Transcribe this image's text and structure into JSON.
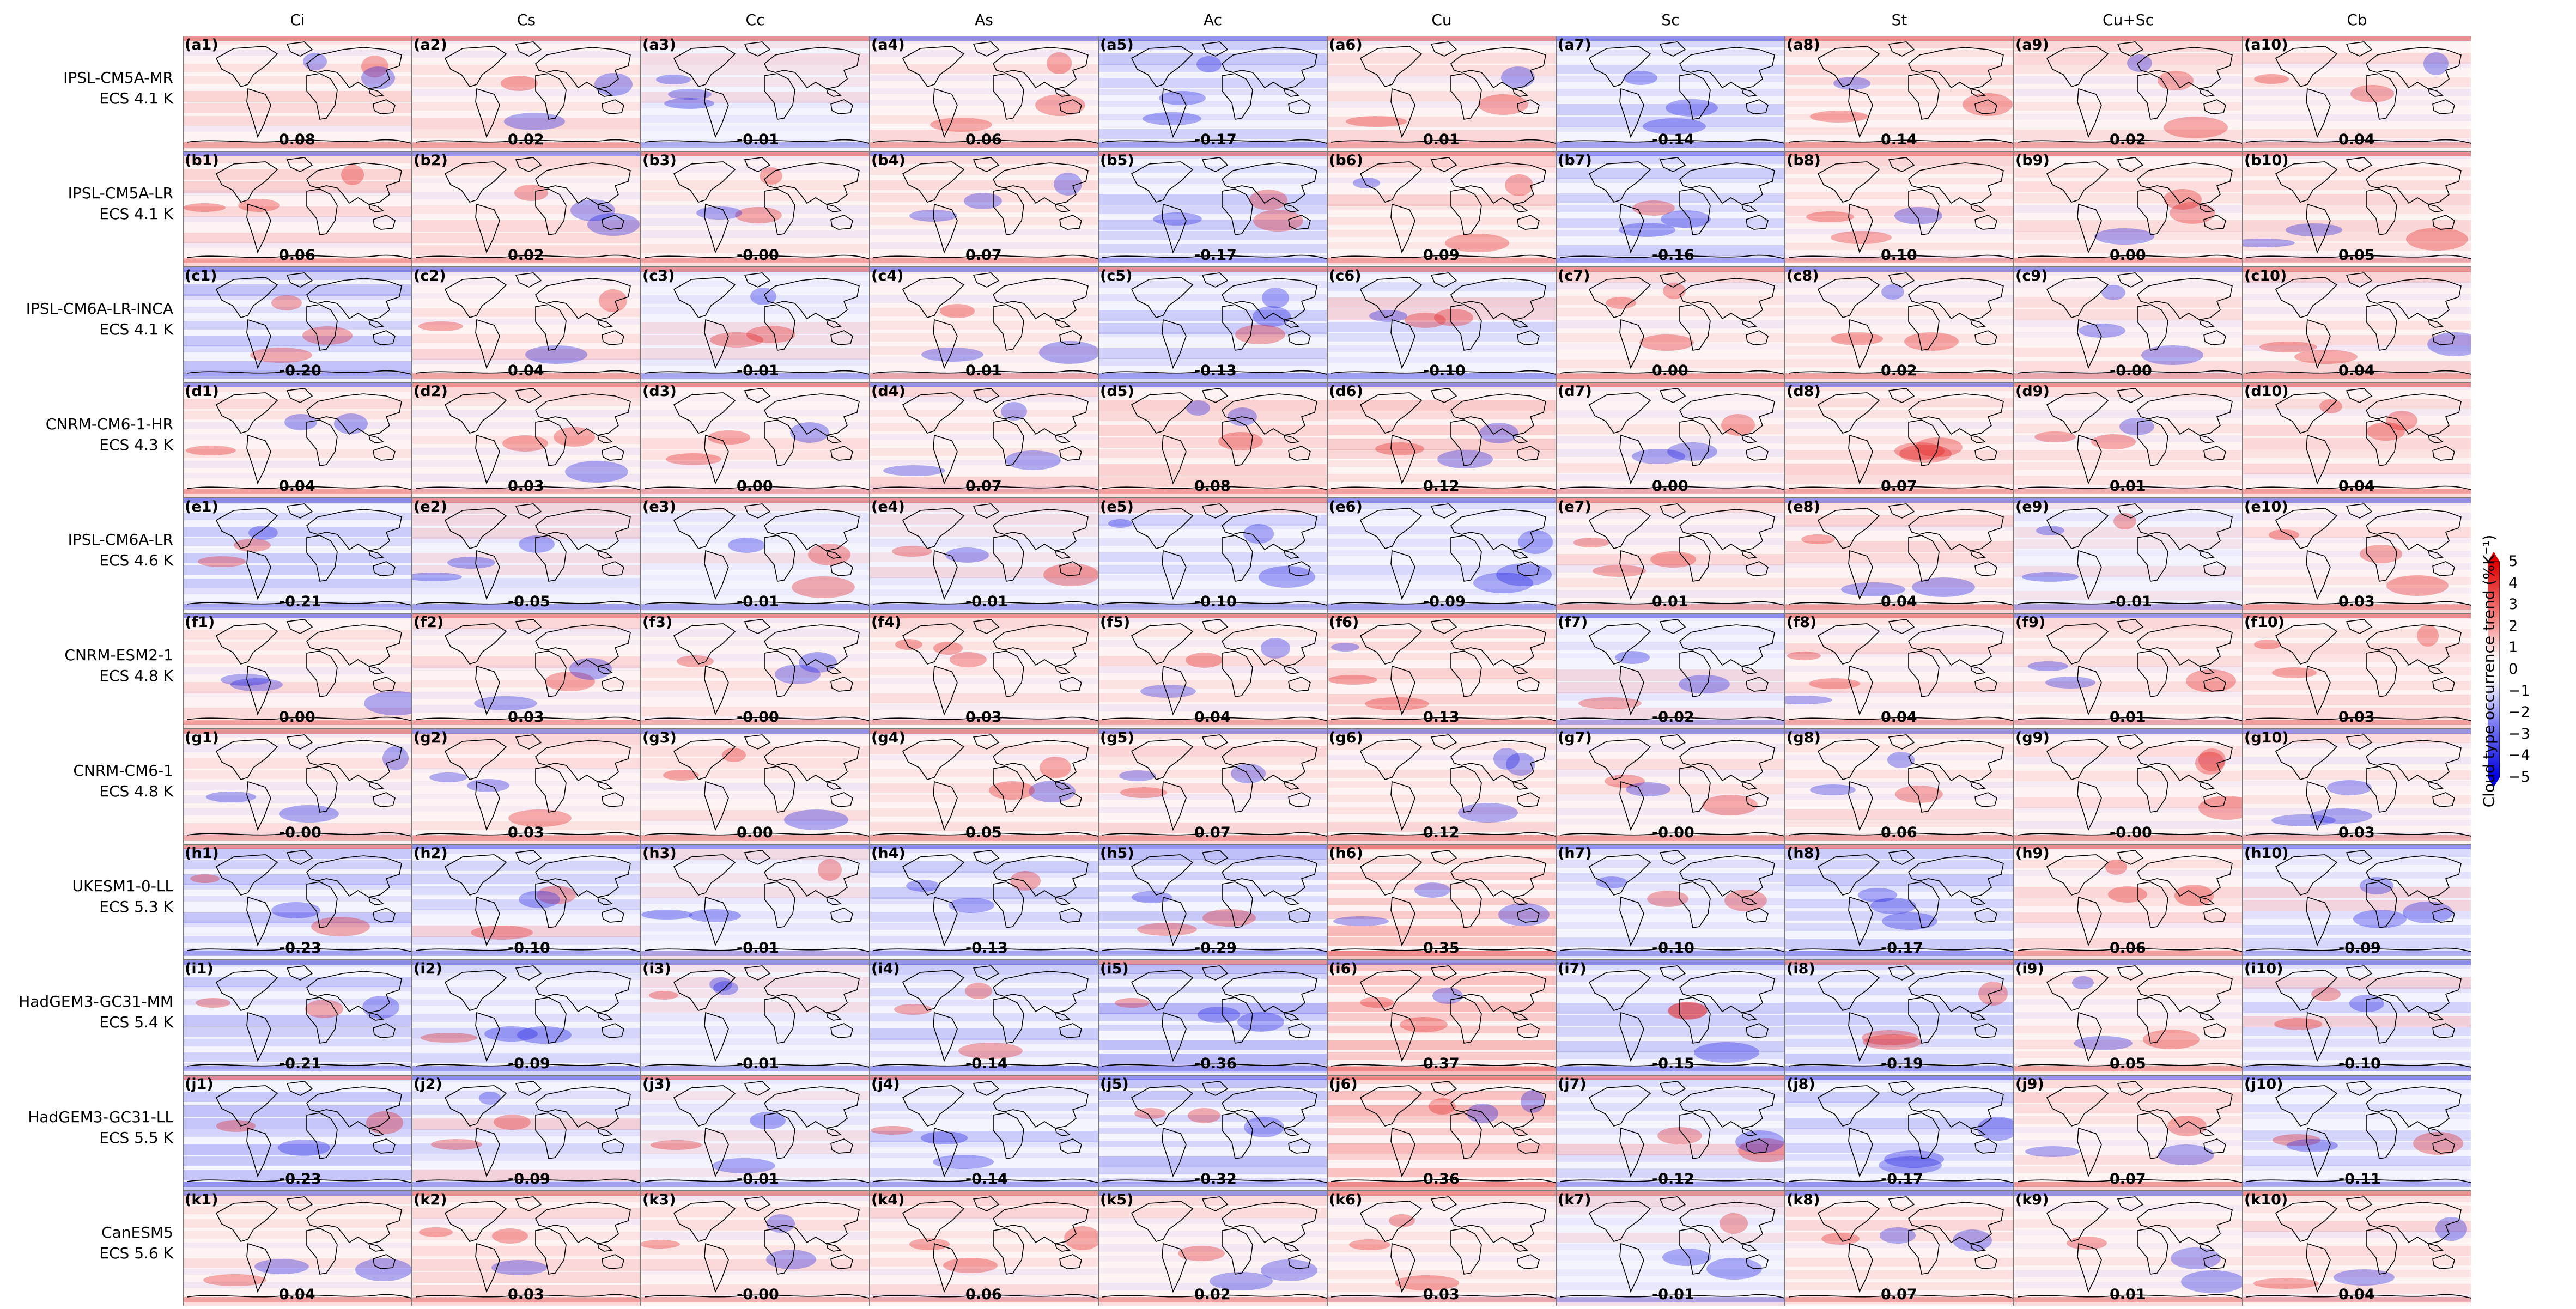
{
  "columns": [
    "Ci",
    "Cs",
    "Cc",
    "As",
    "Ac",
    "Cu",
    "Sc",
    "St",
    "Cu+Sc",
    "Cb"
  ],
  "rows": [
    {
      "letter": "a",
      "model": "IPSL-CM5A-MR",
      "ecs": "ECS 4.1 K",
      "values": [
        "0.08",
        "0.02",
        "-0.01",
        "0.06",
        "-0.17",
        "0.01",
        "-0.14",
        "0.14",
        "0.02",
        "0.04"
      ]
    },
    {
      "letter": "b",
      "model": "IPSL-CM5A-LR",
      "ecs": "ECS 4.1 K",
      "values": [
        "0.06",
        "0.02",
        "-0.00",
        "0.07",
        "-0.17",
        "0.09",
        "-0.16",
        "0.10",
        "0.00",
        "0.05"
      ]
    },
    {
      "letter": "c",
      "model": "IPSL-CM6A-LR-INCA",
      "ecs": "ECS 4.1 K",
      "values": [
        "-0.20",
        "0.04",
        "-0.01",
        "0.01",
        "-0.13",
        "-0.10",
        "0.00",
        "0.02",
        "-0.00",
        "0.04"
      ]
    },
    {
      "letter": "d",
      "model": "CNRM-CM6-1-HR",
      "ecs": "ECS 4.3 K",
      "values": [
        "0.04",
        "0.03",
        "0.00",
        "0.07",
        "0.08",
        "0.12",
        "0.00",
        "0.07",
        "0.01",
        "0.04"
      ]
    },
    {
      "letter": "e",
      "model": "IPSL-CM6A-LR",
      "ecs": "ECS 4.6 K",
      "values": [
        "-0.21",
        "-0.05",
        "-0.01",
        "-0.01",
        "-0.10",
        "-0.09",
        "0.01",
        "0.04",
        "-0.01",
        "0.03"
      ]
    },
    {
      "letter": "f",
      "model": "CNRM-ESM2-1",
      "ecs": "ECS 4.8 K",
      "values": [
        "0.00",
        "0.03",
        "-0.00",
        "0.03",
        "0.04",
        "0.13",
        "-0.02",
        "0.04",
        "0.01",
        "0.03"
      ]
    },
    {
      "letter": "g",
      "model": "CNRM-CM6-1",
      "ecs": "ECS 4.8 K",
      "values": [
        "-0.00",
        "0.03",
        "0.00",
        "0.05",
        "0.07",
        "0.12",
        "-0.00",
        "0.06",
        "-0.00",
        "0.03"
      ]
    },
    {
      "letter": "h",
      "model": "UKESM1-0-LL",
      "ecs": "ECS 5.3 K",
      "values": [
        "-0.23",
        "-0.10",
        "-0.01",
        "-0.13",
        "-0.29",
        "0.35",
        "-0.10",
        "-0.17",
        "0.06",
        "-0.09"
      ]
    },
    {
      "letter": "i",
      "model": "HadGEM3-GC31-MM",
      "ecs": "ECS 5.4 K",
      "values": [
        "-0.21",
        "-0.09",
        "-0.01",
        "-0.14",
        "-0.36",
        "0.37",
        "-0.15",
        "-0.19",
        "0.05",
        "-0.10"
      ]
    },
    {
      "letter": "j",
      "model": "HadGEM3-GC31-LL",
      "ecs": "ECS 5.5 K",
      "values": [
        "-0.23",
        "-0.09",
        "-0.01",
        "-0.14",
        "-0.32",
        "0.36",
        "-0.12",
        "-0.17",
        "0.07",
        "-0.11"
      ]
    },
    {
      "letter": "k",
      "model": "CanESM5",
      "ecs": "ECS 5.6 K",
      "values": [
        "0.04",
        "0.03",
        "-0.00",
        "0.06",
        "0.02",
        "0.03",
        "-0.01",
        "0.07",
        "0.01",
        "0.04"
      ]
    }
  ],
  "colorbar": {
    "label": "Cloud type occurrence trend (%K⁻¹)",
    "ticks": [
      "5",
      "4",
      "3",
      "2",
      "1",
      "0",
      "−1",
      "−2",
      "−3",
      "−4",
      "−5"
    ],
    "range": [
      -5,
      5
    ],
    "colors": {
      "low": "#0000ff",
      "mid": "#ffffff",
      "high": "#ff0000"
    }
  }
}
